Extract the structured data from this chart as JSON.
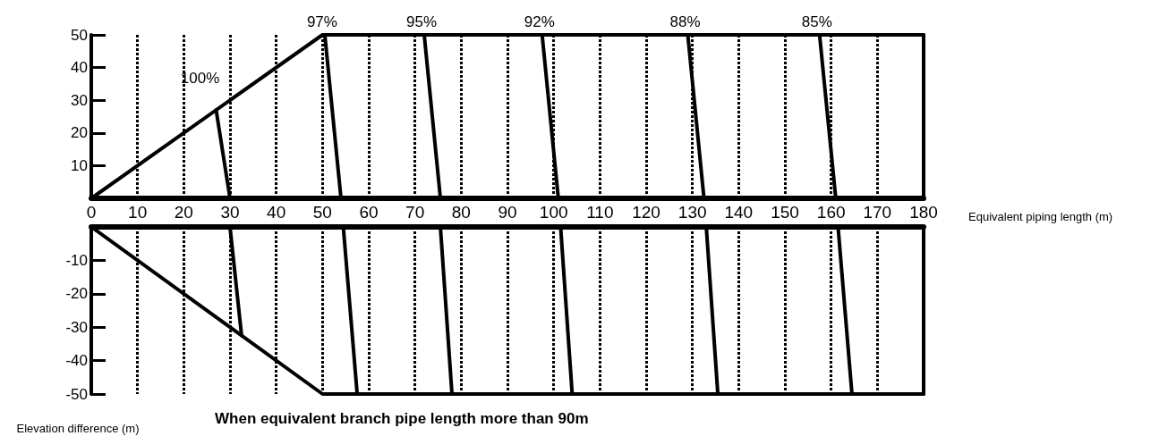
{
  "chart_data": [
    {
      "type": "line",
      "xlabel": "Equivalent piping length (m)",
      "xlim": [
        0,
        180
      ],
      "xticks": [
        0,
        10,
        20,
        30,
        40,
        50,
        60,
        70,
        80,
        90,
        100,
        110,
        120,
        130,
        140,
        150,
        160,
        170,
        180
      ],
      "ylim": [
        0,
        50
      ],
      "yticks": [
        10,
        20,
        30,
        40,
        50
      ],
      "grid": "x",
      "marker": "none",
      "line_style": "solid",
      "series": [
        {
          "color": "#000000",
          "x": [
            0,
            50,
            180
          ],
          "values": [
            0,
            50,
            50
          ]
        },
        {
          "name": "100%",
          "color": "#000000",
          "x": [
            27,
            30
          ],
          "values": [
            27,
            0
          ]
        },
        {
          "name": "97%",
          "color": "#000000",
          "x": [
            50.5,
            54
          ],
          "values": [
            50,
            0
          ]
        },
        {
          "name": "95%",
          "color": "#000000",
          "x": [
            72,
            75.5
          ],
          "values": [
            50,
            0
          ]
        },
        {
          "name": "92%",
          "color": "#000000",
          "x": [
            97.5,
            101
          ],
          "values": [
            50,
            0
          ]
        },
        {
          "name": "88%",
          "color": "#000000",
          "x": [
            129,
            132.5
          ],
          "values": [
            50,
            0
          ]
        },
        {
          "name": "85%",
          "color": "#000000",
          "x": [
            157.5,
            161
          ],
          "values": [
            50,
            0
          ]
        }
      ]
    },
    {
      "type": "line",
      "ylabel": "Elevation difference (m)",
      "annotations": [
        "When equivalent branch pipe length more than 90m"
      ],
      "xlim": [
        0,
        180
      ],
      "xticks": [
        0,
        10,
        20,
        30,
        40,
        50,
        60,
        70,
        80,
        90,
        100,
        110,
        120,
        130,
        140,
        150,
        160,
        170,
        180
      ],
      "ylim": [
        -50,
        0
      ],
      "yticks": [
        -50,
        -40,
        -30,
        -20,
        -10
      ],
      "tick_labels": "y",
      "grid": "x",
      "marker": "none",
      "line_style": "solid",
      "series": [
        {
          "color": "#000000",
          "x": [
            0,
            50,
            180
          ],
          "values": [
            0,
            -50,
            -50
          ]
        },
        {
          "color": "#000000",
          "x": [
            30,
            32.5
          ],
          "values": [
            0,
            -32.5
          ]
        },
        {
          "color": "#000000",
          "x": [
            54.5,
            57.5
          ],
          "values": [
            0,
            -50
          ]
        },
        {
          "color": "#000000",
          "x": [
            75.5,
            78
          ],
          "values": [
            0,
            -50
          ]
        },
        {
          "color": "#000000",
          "x": [
            101.5,
            104
          ],
          "values": [
            0,
            -50
          ]
        },
        {
          "color": "#000000",
          "x": [
            133,
            135.5
          ],
          "values": [
            0,
            -50
          ]
        },
        {
          "color": "#000000",
          "x": [
            161.5,
            164.5
          ],
          "values": [
            0,
            -50
          ]
        }
      ]
    }
  ]
}
